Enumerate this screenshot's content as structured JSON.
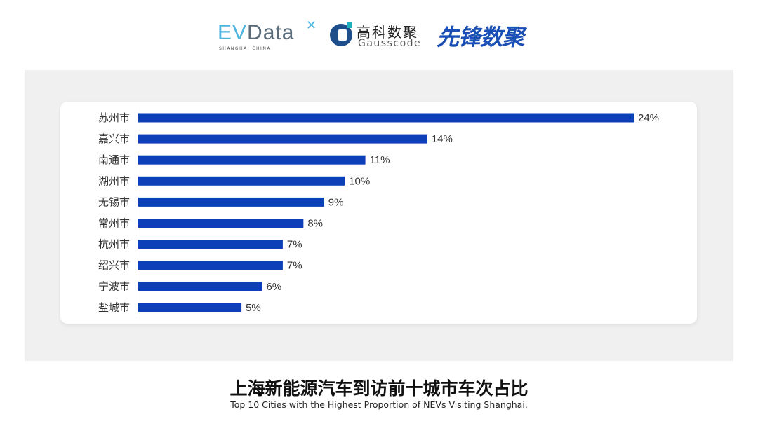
{
  "logos": {
    "evdata": "EVData",
    "evdata_sub": "SHANGHAI CHINA",
    "gausscode_cn": "高科数聚",
    "gausscode_en": "Gausscode",
    "xianfeng": "先锋数聚"
  },
  "colors": {
    "bar": "#0d3fb8",
    "panel": "#f0f0f0"
  },
  "chart_data": {
    "type": "bar",
    "orientation": "horizontal",
    "categories": [
      "苏州市",
      "嘉兴市",
      "南通市",
      "湖州市",
      "无锡市",
      "常州市",
      "杭州市",
      "绍兴市",
      "宁波市",
      "盐城市"
    ],
    "values": [
      24,
      14,
      11,
      10,
      9,
      8,
      7,
      7,
      6,
      5
    ],
    "labels": [
      "24%",
      "14%",
      "11%",
      "10%",
      "9%",
      "8%",
      "7%",
      "7%",
      "6%",
      "5%"
    ],
    "unit": "%",
    "grid": false,
    "legend": "none",
    "title": "上海新能源汽车到访前十城市车次占比",
    "subtitle": "Top 10 Cities with the Highest Proportion of  NEVs Visiting Shanghai."
  }
}
